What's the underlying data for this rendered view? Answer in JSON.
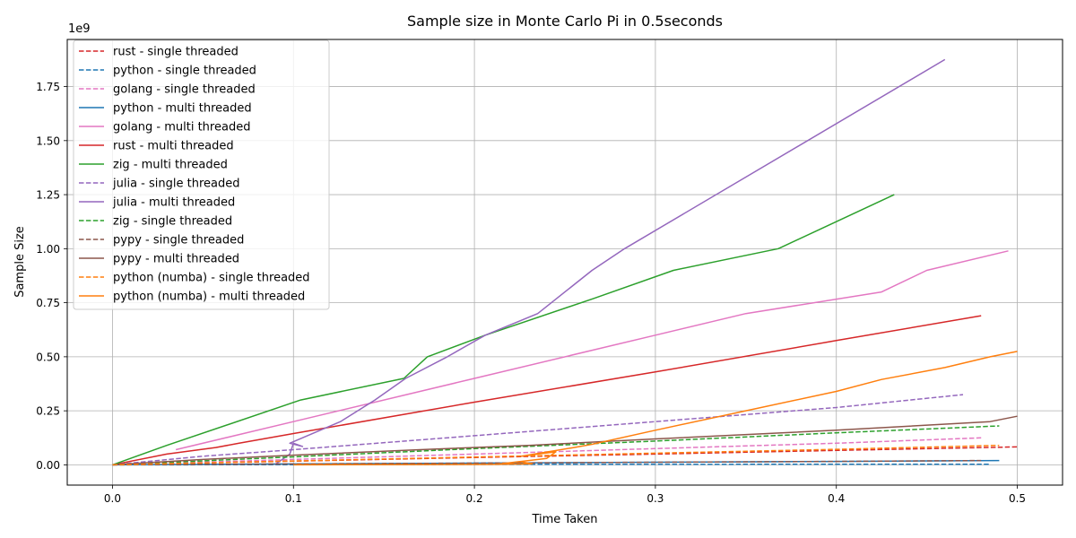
{
  "chart_data": {
    "type": "line",
    "title": "Sample size in Monte Carlo Pi in 0.5seconds",
    "xlabel": "Time Taken",
    "ylabel": "Sample Size",
    "y_offset_label": "1e9",
    "xlim": [
      -0.025,
      0.525
    ],
    "ylim": [
      -0.0937,
      1.968
    ],
    "y_scale_factor": 1000000000,
    "grid": true,
    "legend_position": "upper-left",
    "x_ticks": [
      {
        "value": 0.0,
        "label": "0.0"
      },
      {
        "value": 0.1,
        "label": "0.1"
      },
      {
        "value": 0.2,
        "label": "0.2"
      },
      {
        "value": 0.3,
        "label": "0.3"
      },
      {
        "value": 0.4,
        "label": "0.4"
      },
      {
        "value": 0.5,
        "label": "0.5"
      }
    ],
    "y_ticks": [
      {
        "value": 0.0,
        "label": "0.00"
      },
      {
        "value": 0.25,
        "label": "0.25"
      },
      {
        "value": 0.5,
        "label": "0.50"
      },
      {
        "value": 0.75,
        "label": "0.75"
      },
      {
        "value": 1.0,
        "label": "1.00"
      },
      {
        "value": 1.25,
        "label": "1.25"
      },
      {
        "value": 1.5,
        "label": "1.50"
      },
      {
        "value": 1.75,
        "label": "1.75"
      }
    ],
    "series": [
      {
        "name": "rust - single threaded",
        "color": "#d62728",
        "dashed": true,
        "points": [
          [
            0,
            0
          ],
          [
            0.1,
            0.017
          ],
          [
            0.2,
            0.034
          ],
          [
            0.3,
            0.05
          ],
          [
            0.4,
            0.067
          ],
          [
            0.5,
            0.083
          ]
        ]
      },
      {
        "name": "python - single threaded",
        "color": "#1f77b4",
        "dashed": true,
        "points": [
          [
            0,
            0
          ],
          [
            0.1,
            0.001
          ],
          [
            0.2,
            0.002
          ],
          [
            0.3,
            0.002
          ],
          [
            0.4,
            0.003
          ],
          [
            0.485,
            0.003
          ]
        ]
      },
      {
        "name": "golang - single threaded",
        "color": "#e377c2",
        "dashed": true,
        "points": [
          [
            0,
            0
          ],
          [
            0.1,
            0.025
          ],
          [
            0.2,
            0.05
          ],
          [
            0.3,
            0.075
          ],
          [
            0.4,
            0.1
          ],
          [
            0.48,
            0.125
          ]
        ]
      },
      {
        "name": "python - multi threaded",
        "color": "#1f77b4",
        "dashed": false,
        "points": [
          [
            0,
            0
          ],
          [
            0.1,
            0.004
          ],
          [
            0.2,
            0.008
          ],
          [
            0.3,
            0.012
          ],
          [
            0.4,
            0.016
          ],
          [
            0.49,
            0.02
          ]
        ]
      },
      {
        "name": "golang - multi threaded",
        "color": "#e377c2",
        "dashed": false,
        "points": [
          [
            0.035,
            0.07
          ],
          [
            0.1,
            0.2
          ],
          [
            0.2,
            0.4
          ],
          [
            0.3,
            0.6
          ],
          [
            0.35,
            0.7
          ],
          [
            0.425,
            0.8
          ],
          [
            0.45,
            0.9
          ],
          [
            0.495,
            0.99
          ]
        ]
      },
      {
        "name": "rust - multi threaded",
        "color": "#d62728",
        "dashed": false,
        "points": [
          [
            0,
            0
          ],
          [
            0.03,
            0.05
          ],
          [
            0.057,
            0.08
          ],
          [
            0.07,
            0.1
          ],
          [
            0.1,
            0.145
          ],
          [
            0.2,
            0.29
          ],
          [
            0.3,
            0.43
          ],
          [
            0.4,
            0.575
          ],
          [
            0.48,
            0.69
          ]
        ]
      },
      {
        "name": "zig - multi threaded",
        "color": "#2ca02c",
        "dashed": false,
        "points": [
          [
            0,
            0
          ],
          [
            0.03,
            0.09
          ],
          [
            0.104,
            0.3
          ],
          [
            0.161,
            0.4
          ],
          [
            0.174,
            0.5
          ],
          [
            0.206,
            0.6
          ],
          [
            0.266,
            0.77
          ],
          [
            0.31,
            0.9
          ],
          [
            0.368,
            1.0
          ],
          [
            0.432,
            1.25
          ]
        ]
      },
      {
        "name": "julia - single threaded",
        "color": "#9467bd",
        "dashed": true,
        "points": [
          [
            0,
            0
          ],
          [
            0.05,
            0.04
          ],
          [
            0.1,
            0.07
          ],
          [
            0.2,
            0.135
          ],
          [
            0.3,
            0.2
          ],
          [
            0.4,
            0.265
          ],
          [
            0.47,
            0.325
          ]
        ]
      },
      {
        "name": "julia - multi threaded",
        "color": "#9467bd",
        "dashed": false,
        "points": [
          [
            0.09,
            0.002
          ],
          [
            0.098,
            0.05
          ],
          [
            0.1,
            0.1
          ],
          [
            0.105,
            0.085
          ],
          [
            0.098,
            0.1
          ],
          [
            0.126,
            0.2
          ],
          [
            0.145,
            0.3
          ],
          [
            0.162,
            0.4
          ],
          [
            0.185,
            0.5
          ],
          [
            0.206,
            0.6
          ],
          [
            0.235,
            0.7
          ],
          [
            0.25,
            0.8
          ],
          [
            0.265,
            0.9
          ],
          [
            0.283,
            1.0
          ],
          [
            0.46,
            1.875
          ]
        ]
      },
      {
        "name": "zig - single threaded",
        "color": "#2ca02c",
        "dashed": true,
        "points": [
          [
            0,
            0
          ],
          [
            0.1,
            0.037
          ],
          [
            0.2,
            0.075
          ],
          [
            0.3,
            0.11
          ],
          [
            0.4,
            0.148
          ],
          [
            0.49,
            0.18
          ]
        ]
      },
      {
        "name": "pypy - single threaded",
        "color": "#8c564b",
        "dashed": true,
        "points": [
          [
            0,
            0
          ],
          [
            0.1,
            0.004
          ],
          [
            0.2,
            0.008
          ],
          [
            0.3,
            0.012
          ],
          [
            0.4,
            0.016
          ],
          [
            0.48,
            0.02
          ]
        ]
      },
      {
        "name": "pypy - multi threaded",
        "color": "#8c564b",
        "dashed": false,
        "points": [
          [
            0,
            0
          ],
          [
            0.05,
            0.025
          ],
          [
            0.1,
            0.045
          ],
          [
            0.17,
            0.07
          ],
          [
            0.23,
            0.09
          ],
          [
            0.3,
            0.12
          ],
          [
            0.4,
            0.16
          ],
          [
            0.485,
            0.2
          ],
          [
            0.5,
            0.225
          ]
        ]
      },
      {
        "name": "python (numba) - single threaded",
        "color": "#ff7f0e",
        "dashed": true,
        "points": [
          [
            0,
            0
          ],
          [
            0.1,
            0.018
          ],
          [
            0.2,
            0.036
          ],
          [
            0.3,
            0.054
          ],
          [
            0.4,
            0.072
          ],
          [
            0.49,
            0.09
          ]
        ]
      },
      {
        "name": "python (numba) - multi threaded",
        "color": "#ff7f0e",
        "dashed": false,
        "points": [
          [
            0.1,
            0.0
          ],
          [
            0.21,
            0.002
          ],
          [
            0.232,
            0.005
          ],
          [
            0.225,
            0.015
          ],
          [
            0.212,
            0.002
          ],
          [
            0.24,
            0.03
          ],
          [
            0.245,
            0.06
          ],
          [
            0.226,
            0.04
          ],
          [
            0.255,
            0.08
          ],
          [
            0.265,
            0.095
          ],
          [
            0.3,
            0.16
          ],
          [
            0.35,
            0.25
          ],
          [
            0.4,
            0.34
          ],
          [
            0.425,
            0.395
          ],
          [
            0.46,
            0.45
          ],
          [
            0.485,
            0.5
          ],
          [
            0.5,
            0.525
          ]
        ]
      }
    ]
  }
}
